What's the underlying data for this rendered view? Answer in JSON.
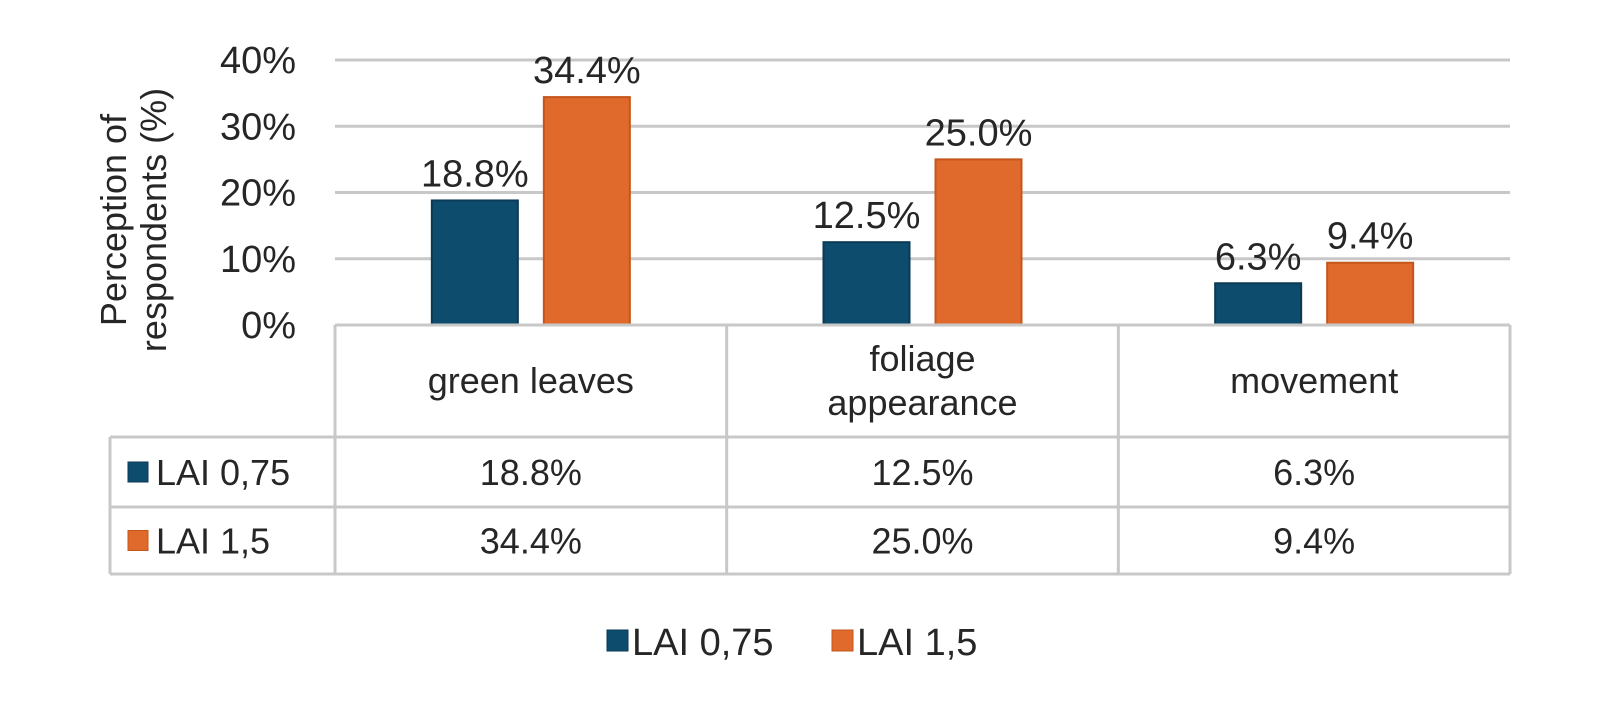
{
  "chart_data": {
    "type": "bar",
    "title": "",
    "xlabel": "",
    "ylabel": "Perception of respondents (%)",
    "ylabel_lines": [
      "Perception of",
      "respondents (%)"
    ],
    "ylim": [
      0,
      40
    ],
    "yticks": [
      0,
      10,
      20,
      30,
      40
    ],
    "ytick_labels": [
      "0%",
      "10%",
      "20%",
      "30%",
      "40%"
    ],
    "grid": true,
    "categories": [
      "green leaves",
      "foliage appearance",
      " movement"
    ],
    "category_lines": [
      [
        "green leaves"
      ],
      [
        "foliage",
        "appearance"
      ],
      [
        "movement"
      ]
    ],
    "series": [
      {
        "name": "LAI 0,75",
        "color": "#0e4c6e",
        "values": [
          18.8,
          12.5,
          6.3
        ],
        "labels": [
          "18.8%",
          "12.5%",
          "6.3%"
        ]
      },
      {
        "name": "LAI 1,5",
        "color": "#e06a2b",
        "values": [
          34.4,
          25.0,
          9.4
        ],
        "labels": [
          "34.4%",
          "25.0%",
          "9.4%"
        ]
      }
    ],
    "data_table": true,
    "legend_position": "bottom"
  }
}
